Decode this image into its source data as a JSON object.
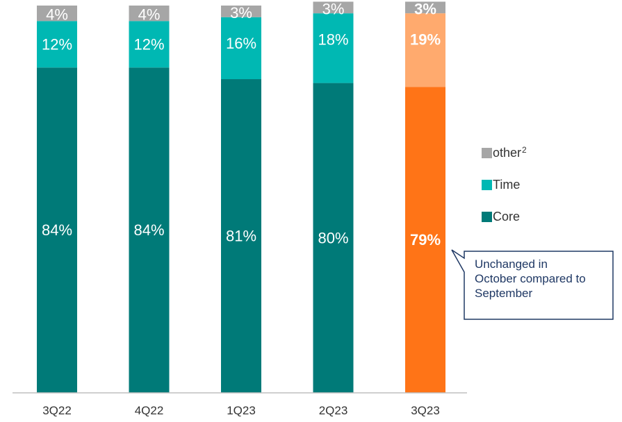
{
  "chart_data": {
    "type": "bar",
    "stacked": true,
    "categories": [
      "3Q22",
      "4Q22",
      "1Q23",
      "2Q23",
      "3Q23"
    ],
    "series": [
      {
        "name": "Core",
        "values": [
          84,
          84,
          81,
          80,
          79
        ],
        "labels": [
          "84%",
          "84%",
          "81%",
          "80%",
          "79%"
        ]
      },
      {
        "name": "Time",
        "values": [
          12,
          12,
          16,
          18,
          19
        ],
        "labels": [
          "12%",
          "12%",
          "16%",
          "18%",
          "19%"
        ]
      },
      {
        "name": "other",
        "values": [
          4,
          4,
          3,
          3,
          3
        ],
        "labels": [
          "4%",
          "4%",
          "3%",
          "3%",
          "3%"
        ]
      }
    ],
    "ylim": [
      0,
      100
    ],
    "legend_position": "right",
    "grid": false,
    "highlight_category": "3Q23"
  },
  "colors": {
    "core": "#007A78",
    "time": "#00B8B3",
    "other": "#A6A6A6",
    "highlight_core": "#FF7417",
    "highlight_time": "#FFAA6E",
    "highlight_other": "#A6A6A6",
    "callout_border": "#1f3864"
  },
  "legend": {
    "items": [
      {
        "label": "other",
        "sup": "2",
        "color": "#A6A6A6"
      },
      {
        "label": "Time",
        "sup": "",
        "color": "#00B8B3"
      },
      {
        "label": "Core",
        "sup": "",
        "color": "#007A78"
      }
    ]
  },
  "callout": {
    "text": "Unchanged in October compared to September"
  }
}
